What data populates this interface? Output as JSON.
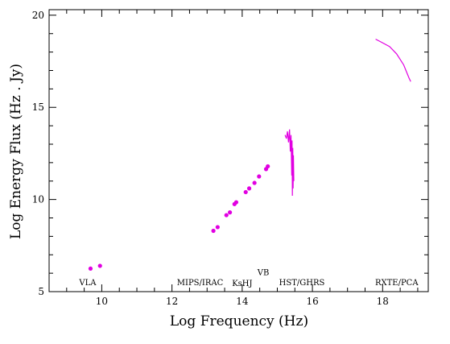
{
  "chart_data": {
    "type": "scatter",
    "xlabel": "Log Frequency (Hz)",
    "ylabel": "Log Energy Flux (Hz . Jy)",
    "xlim": [
      8.5,
      19.3
    ],
    "ylim": [
      5,
      20.3
    ],
    "xticks": [
      10,
      12,
      14,
      16,
      18
    ],
    "yticks": [
      5,
      10,
      15,
      20
    ],
    "grid": false,
    "color": "#e100e1",
    "series": [
      {
        "kind": "points",
        "values": [
          {
            "x": 9.68,
            "y": 6.25
          },
          {
            "x": 9.95,
            "y": 6.4
          },
          {
            "x": 13.18,
            "y": 8.3
          },
          {
            "x": 13.3,
            "y": 8.5
          },
          {
            "x": 13.55,
            "y": 9.15
          },
          {
            "x": 13.65,
            "y": 9.3
          },
          {
            "x": 13.78,
            "y": 9.75
          },
          {
            "x": 13.83,
            "y": 9.85
          },
          {
            "x": 14.1,
            "y": 10.4
          },
          {
            "x": 14.2,
            "y": 10.6
          },
          {
            "x": 14.35,
            "y": 10.9
          },
          {
            "x": 14.48,
            "y": 11.25
          },
          {
            "x": 14.68,
            "y": 11.65
          },
          {
            "x": 14.73,
            "y": 11.8
          }
        ]
      },
      {
        "kind": "line",
        "values": [
          {
            "x": 15.22,
            "y": 13.5
          },
          {
            "x": 15.26,
            "y": 13.3
          },
          {
            "x": 15.29,
            "y": 13.7
          },
          {
            "x": 15.32,
            "y": 13.1
          },
          {
            "x": 15.35,
            "y": 13.8
          },
          {
            "x": 15.37,
            "y": 12.6
          },
          {
            "x": 15.39,
            "y": 13.5
          },
          {
            "x": 15.41,
            "y": 11.3
          },
          {
            "x": 15.42,
            "y": 13.2
          },
          {
            "x": 15.43,
            "y": 10.2
          },
          {
            "x": 15.44,
            "y": 12.8
          },
          {
            "x": 15.45,
            "y": 10.6
          },
          {
            "x": 15.46,
            "y": 12.4
          },
          {
            "x": 15.47,
            "y": 11.0
          }
        ]
      },
      {
        "kind": "line",
        "values": [
          {
            "x": 17.8,
            "y": 18.7
          },
          {
            "x": 17.95,
            "y": 18.55
          },
          {
            "x": 18.2,
            "y": 18.3
          },
          {
            "x": 18.4,
            "y": 17.9
          },
          {
            "x": 18.6,
            "y": 17.3
          },
          {
            "x": 18.75,
            "y": 16.6
          },
          {
            "x": 18.8,
            "y": 16.4
          }
        ]
      }
    ],
    "annotations": [
      {
        "text": "VLA",
        "x": 9.6,
        "y": 5.35
      },
      {
        "text": "MIPS/IRAC",
        "x": 12.8,
        "y": 5.35
      },
      {
        "text": "KsHJ",
        "x": 14.0,
        "y": 5.3
      },
      {
        "text": "VB",
        "x": 14.6,
        "y": 5.9
      },
      {
        "text": "HST/GHRS",
        "x": 15.7,
        "y": 5.35
      },
      {
        "text": "RXTE/PCA",
        "x": 18.4,
        "y": 5.35
      }
    ]
  }
}
